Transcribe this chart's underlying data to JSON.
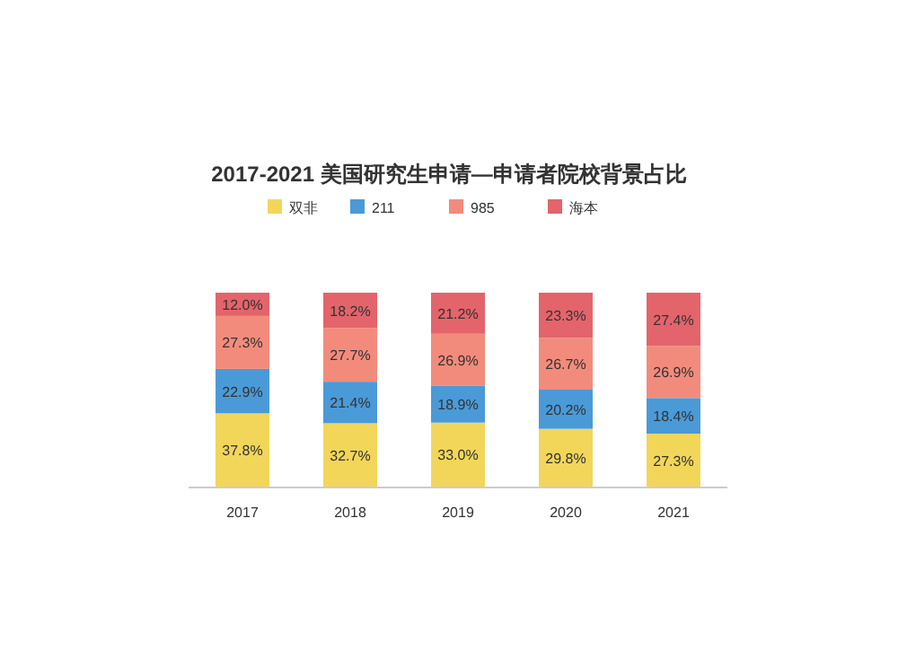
{
  "chart_data": {
    "type": "bar",
    "stacked": true,
    "title": "2017-2021 美国研究生申请—申请者院校背景占比",
    "categories": [
      "2017",
      "2018",
      "2019",
      "2020",
      "2021"
    ],
    "series": [
      {
        "name": "双非",
        "color": "#f2d65a",
        "values": [
          37.8,
          32.7,
          33.0,
          29.8,
          27.3
        ],
        "value_labels": [
          "37.8%",
          "32.7%",
          "33.0%",
          "29.8%",
          "27.3%"
        ]
      },
      {
        "name": "211",
        "color": "#4a9ad8",
        "values": [
          22.9,
          21.4,
          18.9,
          20.2,
          18.4
        ],
        "value_labels": [
          "22.9%",
          "21.4%",
          "18.9%",
          "20.2%",
          "18.4%"
        ]
      },
      {
        "name": "985",
        "color": "#f38b7c",
        "values": [
          27.3,
          27.7,
          26.9,
          26.7,
          26.9
        ],
        "value_labels": [
          "27.3%",
          "27.7%",
          "26.9%",
          "26.7%",
          "26.9%"
        ]
      },
      {
        "name": "海本",
        "color": "#e4646b",
        "values": [
          12.0,
          18.2,
          21.2,
          23.3,
          27.4
        ],
        "value_labels": [
          "12.0%",
          "18.2%",
          "21.2%",
          "23.3%",
          "27.4%"
        ]
      }
    ],
    "legend": "top"
  }
}
